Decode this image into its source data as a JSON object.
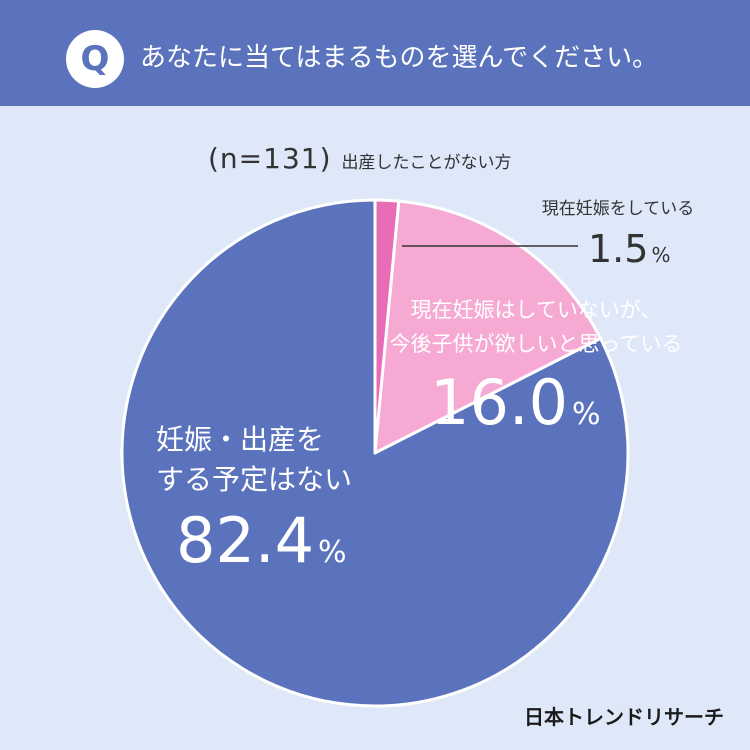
{
  "question": {
    "badge": "Q",
    "text": "あなたに当てはまるものを選んでください。"
  },
  "sample": {
    "n_label": "(n=131)",
    "label": "出産したことがない方"
  },
  "brand": "日本トレンドリサーチ",
  "colors": {
    "header": "#5b73bd",
    "background": "#dfe8f8",
    "slice_main": "#5b73bd",
    "slice_light_pink": "#f6a9d2",
    "slice_dark_pink": "#e86db6"
  },
  "chart_data": {
    "type": "pie",
    "slices": [
      {
        "label": "現在妊娠をしている",
        "value": 1.5,
        "display": "1.5",
        "unit": "%",
        "color": "#e86db6"
      },
      {
        "label_lines": [
          "現在妊娠はしていないが、",
          "今後子供が欲しいと思っている"
        ],
        "value": 16.0,
        "display": "16.0",
        "unit": "%",
        "color": "#f6a9d2"
      },
      {
        "label_lines": [
          "妊娠・出産を",
          "する予定はない"
        ],
        "value": 82.4,
        "display": "82.4",
        "unit": "%",
        "color": "#5b73bd"
      }
    ]
  }
}
